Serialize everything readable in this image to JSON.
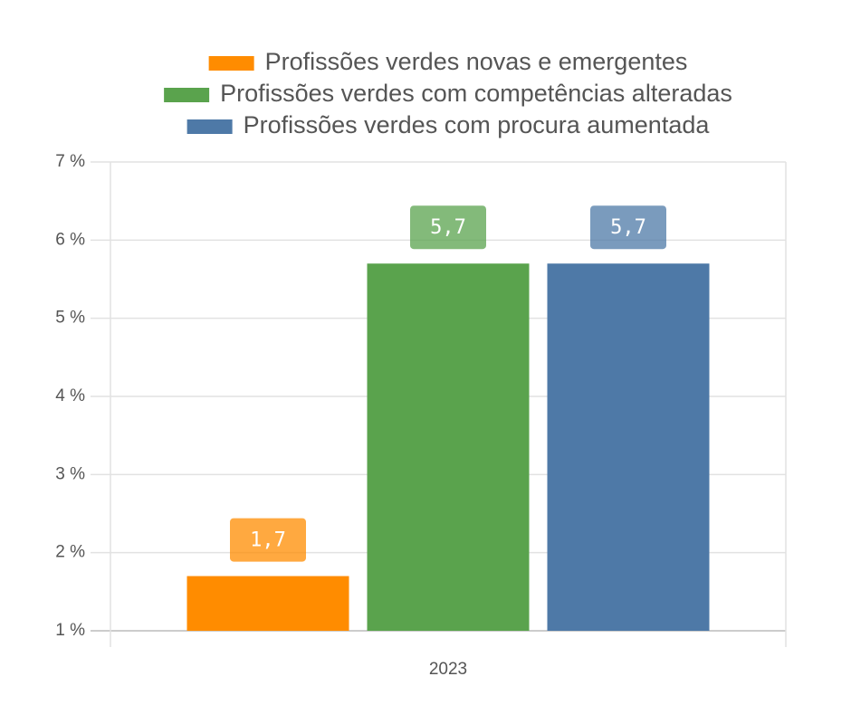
{
  "chart_data": {
    "type": "bar",
    "categories": [
      "2023"
    ],
    "series": [
      {
        "name": "Profissões verdes novas e emergentes",
        "color": "#ff8c00",
        "values": [
          1.7
        ],
        "value_labels": [
          "1,7"
        ]
      },
      {
        "name": "Profissões verdes com competências alteradas",
        "color": "#5aa34d",
        "values": [
          5.7
        ],
        "value_labels": [
          "5,7"
        ]
      },
      {
        "name": "Profissões verdes com procura aumentada",
        "color": "#4e79a7",
        "values": [
          5.7
        ],
        "value_labels": [
          "5,7"
        ]
      }
    ],
    "ylim": [
      1,
      7
    ],
    "yticks": [
      {
        "value": 1,
        "label": "1 %"
      },
      {
        "value": 2,
        "label": "2 %"
      },
      {
        "value": 3,
        "label": "3 %"
      },
      {
        "value": 4,
        "label": "4 %"
      },
      {
        "value": 5,
        "label": "5 %"
      },
      {
        "value": 6,
        "label": "6 %"
      },
      {
        "value": 7,
        "label": "7 %"
      }
    ],
    "grid": true,
    "legend": "top"
  }
}
